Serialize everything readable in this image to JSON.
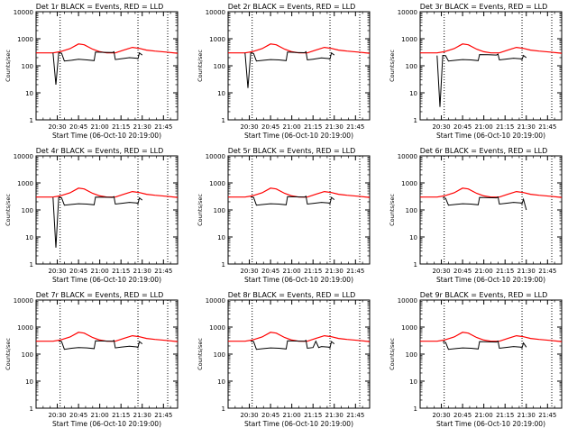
{
  "chart_data": {
    "type": "line",
    "layout": "3x3 grid",
    "y_scale": "log",
    "ylim": [
      1,
      10000
    ],
    "y_ticks": [
      1,
      10,
      100,
      1000,
      10000
    ],
    "y_tick_labels": [
      "1",
      "10",
      "100",
      "1000",
      "10000"
    ],
    "x_tick_labels": [
      "20:30",
      "20:45",
      "21:00",
      "21:15",
      "21:30",
      "21:45"
    ],
    "xlim_minutes_from_2015": [
      0,
      100
    ],
    "x_tick_minutes": [
      15,
      30,
      45,
      60,
      75,
      90
    ],
    "dotted_vlines_minutes": [
      17,
      72,
      93
    ],
    "xlabel": "Start Time (06-Oct-10 20:19:00)",
    "ylabel": "Counts/sec",
    "line_colors": {
      "events": "#000000",
      "lld": "#ff0000"
    },
    "series_key": {
      "events": "BLACK = Events",
      "lld": "RED = LLD"
    },
    "lld_profile": [
      [
        0,
        300
      ],
      [
        12,
        300
      ],
      [
        17,
        330
      ],
      [
        24,
        430
      ],
      [
        30,
        640
      ],
      [
        34,
        600
      ],
      [
        40,
        410
      ],
      [
        45,
        330
      ],
      [
        50,
        300
      ],
      [
        56,
        300
      ],
      [
        62,
        380
      ],
      [
        68,
        480
      ],
      [
        73,
        440
      ],
      [
        78,
        380
      ],
      [
        84,
        350
      ],
      [
        92,
        320
      ],
      [
        100,
        290
      ]
    ],
    "panels": [
      {
        "title": "Det 1r BLACK = Events, RED = LLD",
        "events": [
          [
            12,
            300
          ],
          [
            14,
            20
          ],
          [
            16,
            300
          ],
          [
            18,
            290
          ],
          [
            20,
            150
          ],
          [
            25,
            160
          ],
          [
            30,
            175
          ],
          [
            36,
            165
          ],
          [
            41,
            155
          ],
          [
            42,
            320
          ],
          [
            48,
            315
          ],
          [
            54,
            310
          ],
          [
            55,
            330
          ],
          [
            56,
            170
          ],
          [
            60,
            180
          ],
          [
            66,
            200
          ],
          [
            71,
            190
          ],
          [
            72,
            180
          ],
          [
            73,
            300
          ],
          [
            75,
            250
          ]
        ]
      },
      {
        "title": "Det 2r BLACK = Events, RED = LLD",
        "events": [
          [
            12,
            300
          ],
          [
            14,
            15
          ],
          [
            16,
            300
          ],
          [
            18,
            285
          ],
          [
            20,
            150
          ],
          [
            25,
            160
          ],
          [
            30,
            170
          ],
          [
            36,
            165
          ],
          [
            41,
            155
          ],
          [
            42,
            320
          ],
          [
            48,
            310
          ],
          [
            54,
            305
          ],
          [
            55,
            330
          ],
          [
            56,
            165
          ],
          [
            60,
            175
          ],
          [
            66,
            195
          ],
          [
            71,
            185
          ],
          [
            72,
            175
          ],
          [
            73,
            300
          ],
          [
            75,
            250
          ]
        ]
      },
      {
        "title": "Det 3r BLACK = Events, RED = LLD",
        "events": [
          [
            12,
            240
          ],
          [
            14,
            3
          ],
          [
            16,
            240
          ],
          [
            18,
            235
          ],
          [
            20,
            150
          ],
          [
            25,
            160
          ],
          [
            30,
            170
          ],
          [
            36,
            165
          ],
          [
            41,
            155
          ],
          [
            42,
            260
          ],
          [
            48,
            255
          ],
          [
            54,
            250
          ],
          [
            55,
            270
          ],
          [
            56,
            165
          ],
          [
            60,
            175
          ],
          [
            66,
            190
          ],
          [
            71,
            180
          ],
          [
            72,
            170
          ],
          [
            73,
            240
          ],
          [
            75,
            200
          ]
        ]
      },
      {
        "title": "Det 4r BLACK = Events, RED = LLD",
        "events": [
          [
            12,
            290
          ],
          [
            14,
            4
          ],
          [
            16,
            290
          ],
          [
            18,
            280
          ],
          [
            20,
            150
          ],
          [
            25,
            160
          ],
          [
            30,
            170
          ],
          [
            36,
            165
          ],
          [
            41,
            155
          ],
          [
            42,
            300
          ],
          [
            48,
            295
          ],
          [
            54,
            290
          ],
          [
            55,
            310
          ],
          [
            56,
            165
          ],
          [
            60,
            175
          ],
          [
            66,
            190
          ],
          [
            71,
            180
          ],
          [
            72,
            170
          ],
          [
            73,
            280
          ],
          [
            75,
            230
          ]
        ]
      },
      {
        "title": "Det 5r BLACK = Events, RED = LLD",
        "events": [
          [
            16,
            300
          ],
          [
            18,
            290
          ],
          [
            20,
            150
          ],
          [
            25,
            160
          ],
          [
            30,
            170
          ],
          [
            36,
            165
          ],
          [
            41,
            155
          ],
          [
            42,
            310
          ],
          [
            48,
            305
          ],
          [
            54,
            300
          ],
          [
            55,
            320
          ],
          [
            56,
            165
          ],
          [
            60,
            175
          ],
          [
            66,
            190
          ],
          [
            71,
            180
          ],
          [
            72,
            170
          ],
          [
            73,
            290
          ],
          [
            75,
            240
          ]
        ]
      },
      {
        "title": "Det 6r BLACK = Events, RED = LLD",
        "events": [
          [
            16,
            280
          ],
          [
            18,
            270
          ],
          [
            20,
            150
          ],
          [
            25,
            160
          ],
          [
            30,
            170
          ],
          [
            36,
            165
          ],
          [
            41,
            155
          ],
          [
            42,
            290
          ],
          [
            48,
            285
          ],
          [
            54,
            280
          ],
          [
            55,
            300
          ],
          [
            56,
            165
          ],
          [
            60,
            175
          ],
          [
            66,
            190
          ],
          [
            71,
            180
          ],
          [
            72,
            170
          ],
          [
            73,
            250
          ],
          [
            75,
            100
          ]
        ]
      },
      {
        "title": "Det 7r BLACK = Events, RED = LLD",
        "events": [
          [
            16,
            300
          ],
          [
            18,
            290
          ],
          [
            20,
            150
          ],
          [
            25,
            165
          ],
          [
            30,
            175
          ],
          [
            36,
            170
          ],
          [
            41,
            160
          ],
          [
            42,
            310
          ],
          [
            48,
            305
          ],
          [
            54,
            300
          ],
          [
            55,
            320
          ],
          [
            56,
            170
          ],
          [
            60,
            180
          ],
          [
            66,
            195
          ],
          [
            71,
            185
          ],
          [
            72,
            175
          ],
          [
            73,
            290
          ],
          [
            75,
            240
          ]
        ]
      },
      {
        "title": "Det 8r BLACK = Events, RED = LLD",
        "events": [
          [
            16,
            300
          ],
          [
            18,
            290
          ],
          [
            20,
            150
          ],
          [
            25,
            160
          ],
          [
            30,
            170
          ],
          [
            36,
            165
          ],
          [
            41,
            155
          ],
          [
            42,
            310
          ],
          [
            48,
            305
          ],
          [
            54,
            300
          ],
          [
            55,
            320
          ],
          [
            56,
            165
          ],
          [
            60,
            175
          ],
          [
            62,
            300
          ],
          [
            64,
            175
          ],
          [
            66,
            190
          ],
          [
            71,
            180
          ],
          [
            72,
            170
          ],
          [
            73,
            290
          ],
          [
            75,
            240
          ]
        ]
      },
      {
        "title": "Det 9r BLACK = Events, RED = LLD",
        "events": [
          [
            16,
            280
          ],
          [
            18,
            270
          ],
          [
            20,
            150
          ],
          [
            25,
            160
          ],
          [
            30,
            170
          ],
          [
            36,
            165
          ],
          [
            41,
            155
          ],
          [
            42,
            290
          ],
          [
            48,
            285
          ],
          [
            54,
            280
          ],
          [
            55,
            300
          ],
          [
            56,
            165
          ],
          [
            60,
            175
          ],
          [
            66,
            190
          ],
          [
            71,
            180
          ],
          [
            72,
            170
          ],
          [
            73,
            260
          ],
          [
            75,
            180
          ]
        ]
      }
    ]
  }
}
